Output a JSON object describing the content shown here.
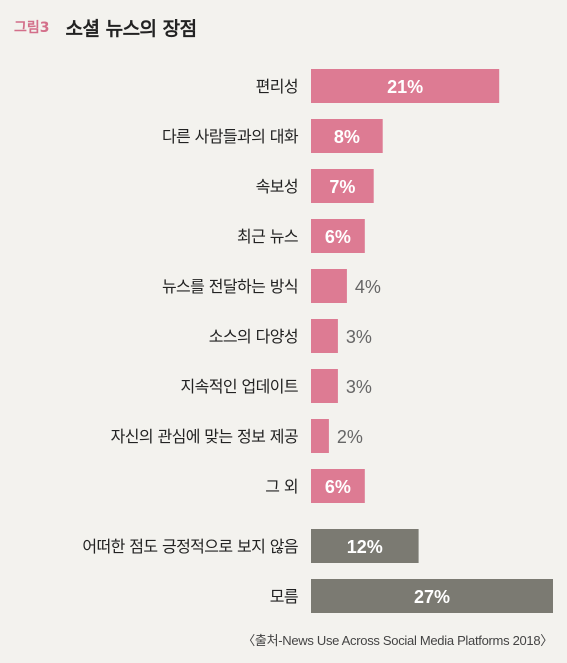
{
  "figure_label": "그림3",
  "title": "소셜 뉴스의 장점",
  "source": "〈출처-News Use Across Social Media Platforms 2018〉",
  "colors": {
    "pink": "#dd7b93",
    "gray": "#7b7a72"
  },
  "chart_data": {
    "type": "bar",
    "orientation": "horizontal",
    "categories": [
      "편리성",
      "다른 사람들과의 대화",
      "속보성",
      "최근 뉴스",
      "뉴스를 전달하는 방식",
      "소스의 다양성",
      "지속적인 업데이트",
      "자신의 관심에 맞는 정보 제공",
      "그 외",
      "어떠한 점도 긍정적으로 보지 않음",
      "모름"
    ],
    "values": [
      21,
      8,
      7,
      6,
      4,
      3,
      3,
      2,
      6,
      12,
      27
    ],
    "labels": [
      "21%",
      "8%",
      "7%",
      "6%",
      "4%",
      "3%",
      "3%",
      "2%",
      "6%",
      "12%",
      "27%"
    ],
    "bar_colors": [
      "pink",
      "pink",
      "pink",
      "pink",
      "pink",
      "pink",
      "pink",
      "pink",
      "pink",
      "gray",
      "gray"
    ]
  }
}
